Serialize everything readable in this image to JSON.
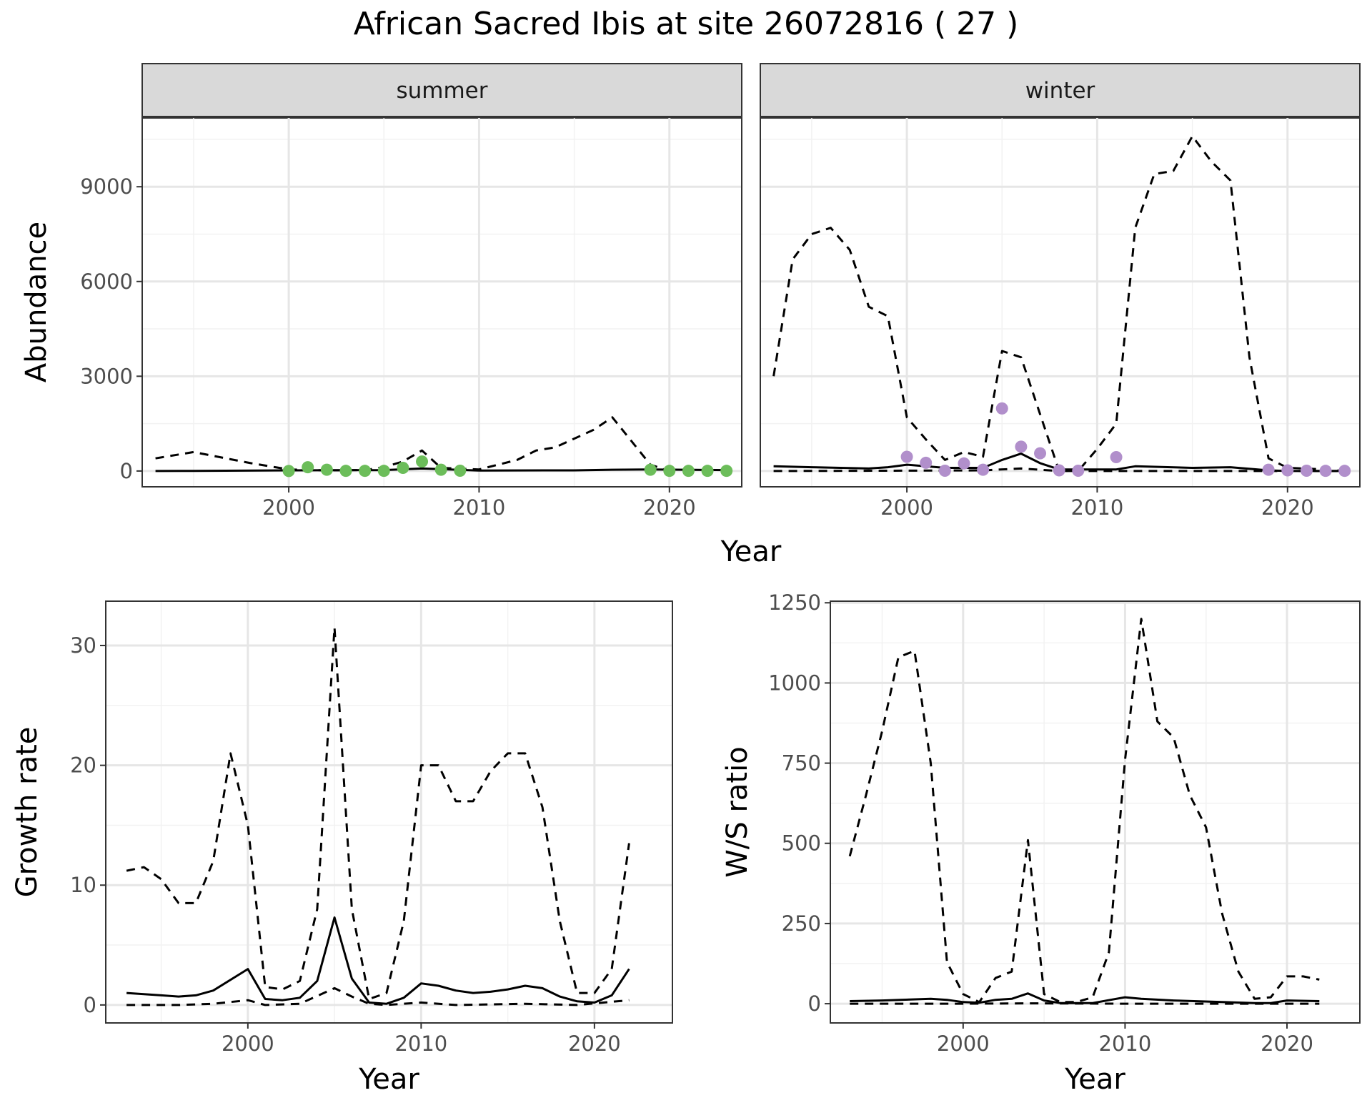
{
  "title": "African Sacred Ibis at site 26072816 ( 27 )",
  "colors": {
    "summer_points": "#6cbd5a",
    "winter_points": "#b18fcb",
    "grid_major": "#e6e6e6",
    "grid_minor": "#f2f2f2",
    "strip": "#d9d9d9"
  },
  "chart_data": [
    {
      "type": "line",
      "panel": "summer",
      "strip_label": "summer",
      "xlabel": "Year",
      "ylabel": "Abundance",
      "xlim": [
        1992.3,
        2023.8
      ],
      "ylim": [
        -500,
        11200
      ],
      "x_ticks": [
        2000,
        2010,
        2020
      ],
      "x_tick_labels": [
        "2000",
        "2010",
        "2020"
      ],
      "y_ticks": [
        0,
        3000,
        6000,
        9000
      ],
      "y_tick_labels": [
        "0",
        "3000",
        "6000",
        "9000"
      ],
      "series": [
        {
          "style": "solid",
          "x": [
            1993,
            1995,
            2000,
            2005,
            2007,
            2010,
            2015,
            2017,
            2019,
            2023
          ],
          "y": [
            0,
            5,
            20,
            30,
            80,
            15,
            20,
            40,
            50,
            30
          ]
        },
        {
          "style": "dashed",
          "x": [
            1993,
            1995,
            1998,
            2000,
            2002,
            2004,
            2005,
            2006,
            2007,
            2008,
            2010,
            2012,
            2013,
            2014,
            2016,
            2017,
            2019,
            2020
          ],
          "y": [
            400,
            600,
            250,
            50,
            20,
            30,
            120,
            300,
            650,
            100,
            50,
            350,
            650,
            750,
            1300,
            1700,
            200,
            0
          ]
        },
        {
          "style": "points",
          "color": "#6cbd5a",
          "x": [
            2000,
            2001,
            2002,
            2003,
            2004,
            2005,
            2006,
            2007,
            2008,
            2009,
            2019,
            2020,
            2021,
            2022,
            2023
          ],
          "y": [
            0,
            120,
            40,
            5,
            5,
            5,
            100,
            300,
            40,
            10,
            40,
            5,
            5,
            5,
            5
          ]
        }
      ]
    },
    {
      "type": "line",
      "panel": "winter",
      "strip_label": "winter",
      "xlabel": "Year",
      "ylabel": "Abundance",
      "xlim": [
        1992.3,
        2023.8
      ],
      "ylim": [
        -500,
        11200
      ],
      "x_ticks": [
        2000,
        2010,
        2020
      ],
      "x_tick_labels": [
        "2000",
        "2010",
        "2020"
      ],
      "y_ticks": [
        0,
        3000,
        6000,
        9000
      ],
      "y_tick_labels": [
        "0",
        "3000",
        "6000",
        "9000"
      ],
      "series": [
        {
          "style": "solid",
          "x": [
            1993,
            1995,
            1998,
            1999,
            2000,
            2002,
            2004,
            2005,
            2006,
            2007,
            2008,
            2010,
            2011,
            2012,
            2015,
            2017,
            2019,
            2020,
            2023
          ],
          "y": [
            150,
            120,
            80,
            120,
            200,
            100,
            100,
            350,
            550,
            250,
            50,
            50,
            50,
            150,
            100,
            120,
            20,
            0,
            0
          ]
        },
        {
          "style": "dashed",
          "x": [
            1993,
            1994,
            1995,
            1996,
            1997,
            1998,
            1999,
            2000,
            2001,
            2002,
            2003,
            2004,
            2005,
            2006,
            2007,
            2008,
            2009,
            2010,
            2011,
            2012,
            2013,
            2014,
            2015,
            2016,
            2017,
            2018,
            2019,
            2020,
            2022,
            2023
          ],
          "y": [
            3000,
            6700,
            7500,
            7700,
            7000,
            5200,
            4900,
            1700,
            1000,
            350,
            600,
            450,
            3800,
            3600,
            1800,
            0,
            0,
            700,
            1500,
            7700,
            9400,
            9500,
            10600,
            9800,
            9200,
            3600,
            400,
            100,
            50,
            0
          ]
        },
        {
          "style": "dashed",
          "x": [
            1993,
            1999,
            2004,
            2006,
            2008,
            2023
          ],
          "y": [
            0,
            10,
            20,
            80,
            0,
            0
          ]
        },
        {
          "style": "points",
          "color": "#b18fcb",
          "x": [
            2000,
            2001,
            2002,
            2003,
            2004,
            2005,
            2006,
            2007,
            2008,
            2009,
            2011,
            2019,
            2020,
            2021,
            2022,
            2023
          ],
          "y": [
            450,
            260,
            10,
            240,
            40,
            1980,
            770,
            560,
            20,
            10,
            440,
            40,
            20,
            10,
            5,
            5
          ]
        }
      ]
    },
    {
      "type": "line",
      "panel": "growth",
      "xlabel": "Year",
      "ylabel": "Growth rate",
      "xlim": [
        1991.8,
        2024.5
      ],
      "ylim": [
        -1.5,
        33.7
      ],
      "x_ticks": [
        2000,
        2010,
        2020
      ],
      "x_tick_labels": [
        "2000",
        "2010",
        "2020"
      ],
      "y_ticks": [
        0,
        10,
        20,
        30
      ],
      "y_tick_labels": [
        "0",
        "10",
        "20",
        "30"
      ],
      "series": [
        {
          "style": "solid",
          "x": [
            1993,
            1995,
            1996,
            1997,
            1998,
            2000,
            2001,
            2002,
            2003,
            2004,
            2005,
            2006,
            2007,
            2008,
            2009,
            2010,
            2011,
            2012,
            2013,
            2014,
            2015,
            2016,
            2017,
            2018,
            2019,
            2020,
            2021,
            2022
          ],
          "y": [
            1,
            0.8,
            0.7,
            0.8,
            1.2,
            3,
            0.5,
            0.4,
            0.6,
            2,
            7.3,
            2.2,
            0.2,
            0.1,
            0.6,
            1.8,
            1.6,
            1.2,
            1,
            1.1,
            1.3,
            1.6,
            1.4,
            0.7,
            0.3,
            0.2,
            0.8,
            3
          ]
        },
        {
          "style": "dashed",
          "x": [
            1993,
            1994,
            1995,
            1996,
            1997,
            1998,
            1999,
            2000,
            2001,
            2002,
            2003,
            2004,
            2005,
            2006,
            2007,
            2008,
            2009,
            2010,
            2011,
            2012,
            2013,
            2014,
            2015,
            2016,
            2017,
            2018,
            2019,
            2020,
            2021,
            2022
          ],
          "y": [
            11.2,
            11.5,
            10.5,
            8.5,
            8.5,
            12,
            21,
            15,
            1.5,
            1.3,
            2,
            8,
            31.5,
            8,
            0.5,
            1,
            7,
            20,
            20,
            17,
            17,
            19.5,
            21,
            21,
            16.5,
            7,
            1,
            1,
            3,
            13.5
          ]
        },
        {
          "style": "dashed",
          "x": [
            1993,
            1996,
            1998,
            2000,
            2001,
            2003,
            2005,
            2006,
            2007,
            2008,
            2010,
            2012,
            2016,
            2019,
            2022
          ],
          "y": [
            0,
            0,
            0.1,
            0.4,
            0,
            0.1,
            1.4,
            0.7,
            0.1,
            0,
            0.2,
            0,
            0.1,
            0,
            0.4
          ]
        }
      ]
    },
    {
      "type": "line",
      "panel": "ws_ratio",
      "xlabel": "Year",
      "ylabel": "W/S ratio",
      "xlim": [
        1991.8,
        2024.5
      ],
      "ylim": [
        -60,
        1255
      ],
      "x_ticks": [
        2000,
        2010,
        2020
      ],
      "x_tick_labels": [
        "2000",
        "2010",
        "2020"
      ],
      "y_ticks": [
        0,
        250,
        500,
        750,
        1000,
        1250
      ],
      "y_tick_labels": [
        "0",
        "250",
        "500",
        "750",
        "1000",
        "1250"
      ],
      "series": [
        {
          "style": "solid",
          "x": [
            1993,
            1995,
            1998,
            1999,
            2000,
            2001,
            2002,
            2003,
            2004,
            2005,
            2006,
            2008,
            2010,
            2011,
            2013,
            2016,
            2018,
            2019,
            2020,
            2022
          ],
          "y": [
            8,
            10,
            15,
            12,
            5,
            3,
            12,
            15,
            32,
            10,
            2,
            2,
            20,
            15,
            10,
            5,
            2,
            2,
            10,
            8
          ]
        },
        {
          "style": "dashed",
          "x": [
            1993,
            1994,
            1995,
            1996,
            1997,
            1998,
            1999,
            2000,
            2001,
            2002,
            2003,
            2004,
            2005,
            2006,
            2007,
            2008,
            2009,
            2010,
            2011,
            2012,
            2013,
            2014,
            2015,
            2016,
            2017,
            2018,
            2019,
            2020,
            2021,
            2022
          ],
          "y": [
            460,
            650,
            850,
            1080,
            1100,
            750,
            130,
            30,
            5,
            80,
            100,
            510,
            30,
            5,
            5,
            20,
            160,
            760,
            1200,
            880,
            830,
            650,
            550,
            280,
            100,
            15,
            20,
            85,
            85,
            75
          ]
        },
        {
          "style": "dashed",
          "x": [
            1993,
            2000,
            2004,
            2010,
            2022
          ],
          "y": [
            0,
            0,
            1,
            0,
            0
          ]
        }
      ]
    }
  ]
}
